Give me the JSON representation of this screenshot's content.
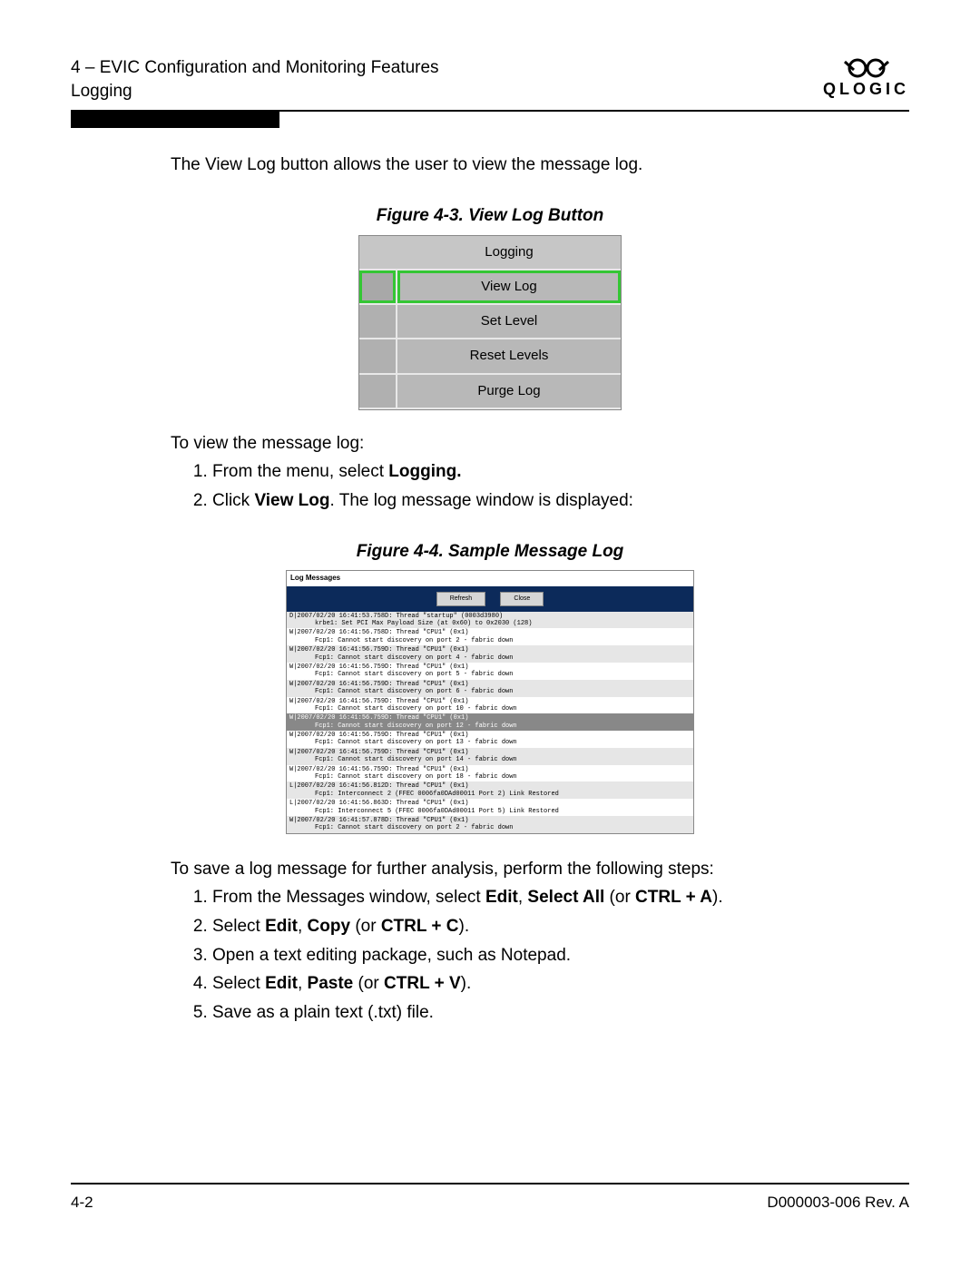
{
  "header": {
    "chapter": "4 – EVIC Configuration and Monitoring Features",
    "section": "Logging",
    "brand": "QLOGIC"
  },
  "intro": "The View Log button allows the user to view the message log.",
  "figure43": {
    "caption": "Figure 4-3. View Log Button",
    "header": "Logging",
    "items": [
      "View Log",
      "Set Level",
      "Reset Levels",
      "Purge Log"
    ],
    "highlighted_index": 0
  },
  "view_steps": {
    "lead": "To view the message log:",
    "s1_a": "From the menu, select ",
    "s1_b": "Logging.",
    "s2_a": "Click ",
    "s2_b": "View Log",
    "s2_c": ". The log message window is displayed:"
  },
  "figure44": {
    "caption": "Figure 4-4. Sample Message Log",
    "title": "Log Messages",
    "btn_refresh": "Refresh",
    "btn_close": "Close",
    "rows": [
      {
        "l1": "D|2007/02/20 16:41:53.758D: Thread \"startup\" (0003d3980)",
        "l2": "krbe1: Set PCI Max Payload Size (at 0x60) to 0x2030 (128)",
        "sel": false
      },
      {
        "l1": "W|2007/02/20 16:41:56.758D: Thread \"CPU1\" (0x1)",
        "l2": "Fcp1: Cannot start discovery on port 2 - fabric down",
        "sel": false
      },
      {
        "l1": "W|2007/02/20 16:41:56.759D: Thread \"CPU1\" (0x1)",
        "l2": "Fcp1: Cannot start discovery on port 4 - fabric down",
        "sel": false
      },
      {
        "l1": "W|2007/02/20 16:41:56.759D: Thread \"CPU1\" (0x1)",
        "l2": "Fcp1: Cannot start discovery on port 5 - fabric down",
        "sel": false
      },
      {
        "l1": "W|2007/02/20 16:41:56.759D: Thread \"CPU1\" (0x1)",
        "l2": "Fcp1: Cannot start discovery on port 6 - fabric down",
        "sel": false
      },
      {
        "l1": "W|2007/02/20 16:41:56.759D: Thread \"CPU1\" (0x1)",
        "l2": "Fcp1: Cannot start discovery on port 10 - fabric down",
        "sel": false
      },
      {
        "l1": "W|2007/02/20 16:41:56.759D: Thread \"CPU1\" (0x1)",
        "l2": "Fcp1: Cannot start discovery on port 12 - fabric down",
        "sel": true
      },
      {
        "l1": "W|2007/02/20 16:41:56.759D: Thread \"CPU1\" (0x1)",
        "l2": "Fcp1: Cannot start discovery on port 13 - fabric down",
        "sel": false
      },
      {
        "l1": "W|2007/02/20 16:41:56.759D: Thread \"CPU1\" (0x1)",
        "l2": "Fcp1: Cannot start discovery on port 14 - fabric down",
        "sel": false
      },
      {
        "l1": "W|2007/02/20 16:41:56.759D: Thread \"CPU1\" (0x1)",
        "l2": "Fcp1: Cannot start discovery on port 18 - fabric down",
        "sel": false
      },
      {
        "l1": "L|2007/02/20 16:41:56.812D: Thread \"CPU1\" (0x1)",
        "l2": "Fcp1: Interconnect 2 (FFEC 0006fa0DAd00011 Port 2) Link Restored",
        "sel": false
      },
      {
        "l1": "L|2007/02/20 16:41:56.863D: Thread \"CPU1\" (0x1)",
        "l2": "Fcp1: Interconnect 5 (FFEC 0006fa0DAd00011 Port 5) Link Restored",
        "sel": false
      },
      {
        "l1": "W|2007/02/20 16:41:57.878D: Thread \"CPU1\" (0x1)",
        "l2": "Fcp1: Cannot start discovery on port 2 - fabric down",
        "sel": false
      }
    ]
  },
  "save_steps": {
    "lead": "To save a log message for further analysis, perform the following steps:",
    "s1_a": "From the Messages window, select ",
    "s1_b": "Edit",
    "s1_c": ", ",
    "s1_d": "Select All",
    "s1_e": " (or ",
    "s1_f": "CTRL + A",
    "s1_g": ").",
    "s2_a": "Select ",
    "s2_b": "Edit",
    "s2_c": ", ",
    "s2_d": "Copy",
    "s2_e": " (or ",
    "s2_f": "CTRL + C",
    "s2_g": ").",
    "s3": "Open a text editing package, such as Notepad.",
    "s4_a": "Select ",
    "s4_b": "Edit",
    "s4_c": ", ",
    "s4_d": "Paste",
    "s4_e": " (or ",
    "s4_f": "CTRL + V",
    "s4_g": ").",
    "s5": "Save as a plain text (.txt) file."
  },
  "footer": {
    "page": "4-2",
    "docid": "D000003-006 Rev. A"
  }
}
